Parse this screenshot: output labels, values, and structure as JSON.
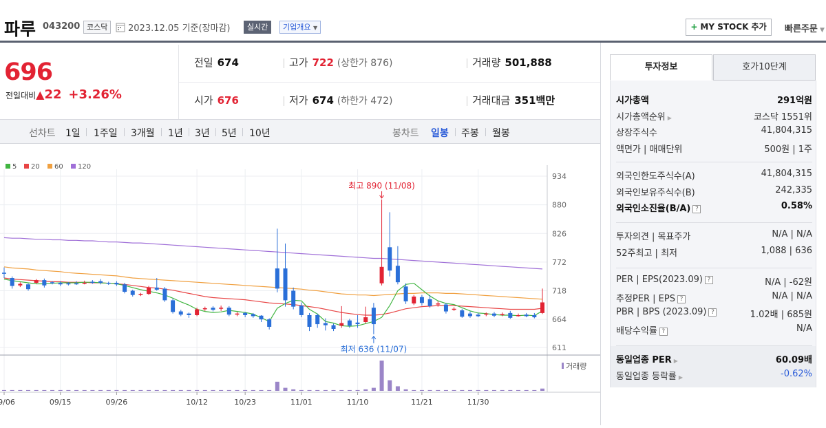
{
  "header": {
    "stock_name": "파루",
    "stock_code": "043200",
    "market_badge": "코스닥",
    "date_text": "2023.12.05  기준(장마감)",
    "realtime_badge": "실시간",
    "company_info_label": "기업개요",
    "mystock_label": "MY STOCK 추가",
    "quick_order_label": "빠른주문"
  },
  "price": {
    "current": "696",
    "change_label": "전일대비",
    "change_value": "22",
    "change_percent": "+3.26%"
  },
  "info": {
    "prev_close_label": "전일",
    "prev_close": "674",
    "high_label": "고가",
    "high": "722",
    "upper_limit": "(상한가 876)",
    "volume_label": "거래량",
    "volume": "501,888",
    "open_label": "시가",
    "open": "676",
    "low_label": "저가",
    "low": "674",
    "lower_limit": "(하한가 472)",
    "value_label": "거래대금",
    "value": "351백만"
  },
  "period_bar": {
    "line_label": "선차트",
    "line_items": [
      "1일",
      "1주일",
      "3개월",
      "1년",
      "3년",
      "5년",
      "10년"
    ],
    "candle_label": "봉차트",
    "candle_items": [
      "일봉",
      "주봉",
      "월봉"
    ],
    "active_candle": "일봉"
  },
  "chart_data": {
    "type": "candlestick",
    "legend": [
      {
        "name": "5",
        "color": "#41b541"
      },
      {
        "name": "20",
        "color": "#e84545"
      },
      {
        "name": "60",
        "color": "#f0a040"
      },
      {
        "name": "120",
        "color": "#a070d8"
      }
    ],
    "y_ticks": [
      934,
      880,
      826,
      772,
      718,
      664,
      611
    ],
    "ylim": [
      611,
      934
    ],
    "x_labels": [
      "09/06",
      "09/15",
      "09/26",
      "10/12",
      "10/23",
      "11/01",
      "11/10",
      "11/21",
      "11/30"
    ],
    "max_annotation": "최고 890 (11/08)",
    "min_annotation": "최저 636 (11/07)",
    "volume_label": "거래량",
    "up_color": "#e22333",
    "down_color": "#2a6fd8",
    "candles": [
      [
        752,
        750,
        762,
        742
      ],
      [
        742,
        727,
        745,
        722
      ],
      [
        728,
        731,
        734,
        725
      ],
      [
        730,
        721,
        732,
        718
      ],
      [
        733,
        738,
        740,
        731
      ],
      [
        738,
        728,
        741,
        724
      ],
      [
        734,
        733,
        736,
        730
      ],
      [
        733,
        730,
        736,
        727
      ],
      [
        732,
        730,
        734,
        728
      ],
      [
        732,
        731,
        736,
        729
      ],
      [
        733,
        733,
        737,
        730
      ],
      [
        735,
        734,
        738,
        731
      ],
      [
        736,
        733,
        740,
        730
      ],
      [
        733,
        732,
        735,
        729
      ],
      [
        733,
        730,
        736,
        727
      ],
      [
        730,
        716,
        733,
        713
      ],
      [
        718,
        710,
        720,
        707
      ],
      [
        711,
        712,
        714,
        708
      ],
      [
        712,
        724,
        727,
        710
      ],
      [
        724,
        720,
        742,
        718
      ],
      [
        722,
        700,
        725,
        697
      ],
      [
        700,
        678,
        703,
        675
      ],
      [
        679,
        673,
        682,
        670
      ],
      [
        675,
        672,
        677,
        667
      ],
      [
        672,
        683,
        686,
        670
      ],
      [
        684,
        685,
        688,
        680
      ],
      [
        686,
        682,
        689,
        679
      ],
      [
        684,
        686,
        690,
        680
      ],
      [
        686,
        673,
        689,
        670
      ],
      [
        673,
        675,
        678,
        670
      ],
      [
        676,
        672,
        678,
        668
      ],
      [
        674,
        670,
        676,
        667
      ],
      [
        671,
        664,
        672,
        659
      ],
      [
        664,
        650,
        666,
        645
      ],
      [
        760,
        722,
        835,
        715
      ],
      [
        760,
        700,
        807,
        688
      ],
      [
        718,
        688,
        724,
        683
      ],
      [
        690,
        672,
        696,
        668
      ],
      [
        672,
        650,
        676,
        642
      ],
      [
        672,
        655,
        675,
        648
      ],
      [
        657,
        653,
        666,
        643
      ],
      [
        653,
        646,
        656,
        642
      ],
      [
        652,
        657,
        689,
        648
      ],
      [
        662,
        652,
        665,
        648
      ],
      [
        658,
        655,
        672,
        648
      ],
      [
        659,
        668,
        688,
        656
      ],
      [
        686,
        655,
        695,
        636
      ],
      [
        732,
        763,
        890,
        728
      ],
      [
        800,
        756,
        866,
        745
      ],
      [
        765,
        734,
        802,
        730
      ],
      [
        726,
        698,
        732,
        693
      ],
      [
        694,
        707,
        710,
        691
      ],
      [
        706,
        695,
        710,
        690
      ],
      [
        702,
        689,
        710,
        686
      ],
      [
        693,
        694,
        698,
        688
      ],
      [
        692,
        679,
        695,
        675
      ],
      [
        683,
        684,
        687,
        680
      ],
      [
        681,
        669,
        684,
        667
      ],
      [
        675,
        670,
        679,
        667
      ],
      [
        673,
        670,
        676,
        668
      ],
      [
        673,
        675,
        677,
        670
      ],
      [
        675,
        671,
        678,
        668
      ],
      [
        673,
        674,
        677,
        670
      ],
      [
        676,
        667,
        680,
        665
      ],
      [
        672,
        672,
        675,
        669
      ],
      [
        673,
        670,
        676,
        668
      ],
      [
        672,
        668,
        676,
        666
      ],
      [
        676,
        696,
        722,
        674
      ]
    ],
    "ma5": [
      740,
      737,
      735,
      733,
      731,
      731,
      732,
      733,
      733,
      733,
      734,
      734,
      733,
      732,
      731,
      728,
      724,
      720,
      717,
      714,
      710,
      704,
      697,
      691,
      683,
      679,
      677,
      678,
      681,
      679,
      677,
      674,
      667,
      660,
      685,
      694,
      700,
      699,
      683,
      674,
      660,
      657,
      652,
      651,
      652,
      656,
      660,
      668,
      690,
      718,
      730,
      732,
      720,
      708,
      699,
      694,
      692,
      686,
      680,
      676,
      675,
      673,
      672,
      672,
      671,
      672,
      671,
      680
    ],
    "ma20": [
      742,
      740,
      739,
      738,
      737,
      736,
      735,
      735,
      734,
      734,
      734,
      733,
      733,
      732,
      731,
      730,
      728,
      726,
      724,
      723,
      721,
      719,
      716,
      713,
      710,
      707,
      705,
      704,
      703,
      702,
      701,
      699,
      697,
      695,
      694,
      693,
      692,
      690,
      688,
      686,
      683,
      680,
      677,
      675,
      673,
      672,
      672,
      673,
      676,
      680,
      684,
      686,
      688,
      689,
      690,
      690,
      690,
      689,
      688,
      687,
      686,
      685,
      684,
      683,
      683,
      683,
      683,
      685
    ],
    "ma60": [
      763,
      761,
      760,
      759,
      757,
      756,
      755,
      754,
      752,
      751,
      750,
      749,
      748,
      747,
      746,
      744,
      742,
      741,
      740,
      739,
      738,
      737,
      736,
      735,
      734,
      733,
      732,
      731,
      730,
      729,
      728,
      727,
      726,
      725,
      724,
      723,
      722,
      721,
      719,
      718,
      716,
      714,
      712,
      711,
      710,
      710,
      709,
      710,
      711,
      712,
      713,
      713,
      714,
      714,
      714,
      713,
      713,
      712,
      711,
      710,
      709,
      708,
      707,
      706,
      705,
      704,
      703,
      702
    ],
    "ma120": [
      818,
      817,
      817,
      816,
      815,
      815,
      814,
      814,
      813,
      813,
      812,
      812,
      811,
      810,
      810,
      809,
      808,
      808,
      807,
      806,
      805,
      804,
      803,
      802,
      801,
      800,
      799,
      798,
      797,
      796,
      795,
      794,
      793,
      792,
      791,
      790,
      789,
      788,
      787,
      786,
      785,
      784,
      783,
      782,
      781,
      780,
      779,
      779,
      778,
      777,
      776,
      775,
      774,
      773,
      772,
      771,
      770,
      769,
      768,
      767,
      766,
      765,
      764,
      763,
      762,
      761,
      760,
      759
    ],
    "volume": [
      1,
      1,
      1,
      1,
      1,
      1,
      1,
      1,
      1,
      1,
      1,
      1,
      1,
      1,
      1,
      1,
      1,
      1,
      1,
      1,
      1,
      1,
      1,
      1,
      1,
      1,
      1,
      1,
      1,
      1,
      1,
      1,
      1,
      1,
      12,
      4,
      2,
      1,
      1,
      1,
      1,
      1,
      1,
      1,
      1,
      2,
      4,
      40,
      14,
      6,
      2,
      1,
      1,
      1,
      1,
      1,
      1,
      1,
      1,
      1,
      1,
      1,
      1,
      1,
      1,
      1,
      1,
      3
    ]
  },
  "side": {
    "tab_active": "투자정보",
    "tab_other": "호가10단계",
    "rows1": [
      {
        "k": "시가총액",
        "v": "291억원",
        "bold": true
      },
      {
        "k": "시가총액순위",
        "v": "코스닥 1551위",
        "arrow": true
      },
      {
        "k": "상장주식수",
        "v": "41,804,315"
      },
      {
        "k": "액면가 | 매매단위",
        "v": "500원 | 1주"
      }
    ],
    "rows2": [
      {
        "k": "외국인한도주식수(A)",
        "v": "41,804,315"
      },
      {
        "k": "외국인보유주식수(B)",
        "v": "242,335"
      },
      {
        "k": "외국인소진율(B/A)",
        "v": "0.58%",
        "bold": true,
        "help": true
      }
    ],
    "rows3": [
      {
        "k": "투자의견 | 목표주가",
        "v": "N/A | N/A"
      },
      {
        "k": "52주최고 | 최저",
        "v": "1,088 | 636"
      }
    ],
    "rows4": [
      {
        "k": "PER | EPS(2023.09)",
        "v": "N/A | -62원",
        "help": true
      },
      {
        "k": "추정PER | EPS",
        "v": "N/A | N/A",
        "help": true
      },
      {
        "k": "PBR | BPS (2023.09)",
        "v": "1.02배 | 685원",
        "help": true
      },
      {
        "k": "배당수익률",
        "v": "N/A",
        "help": true
      }
    ],
    "rows5": [
      {
        "k": "동일업종 PER",
        "v": "60.09배",
        "bold": true,
        "arrow": true
      },
      {
        "k": "동일업종 등락률",
        "v": "-0.62%",
        "blue": true,
        "arrow": true
      }
    ]
  }
}
